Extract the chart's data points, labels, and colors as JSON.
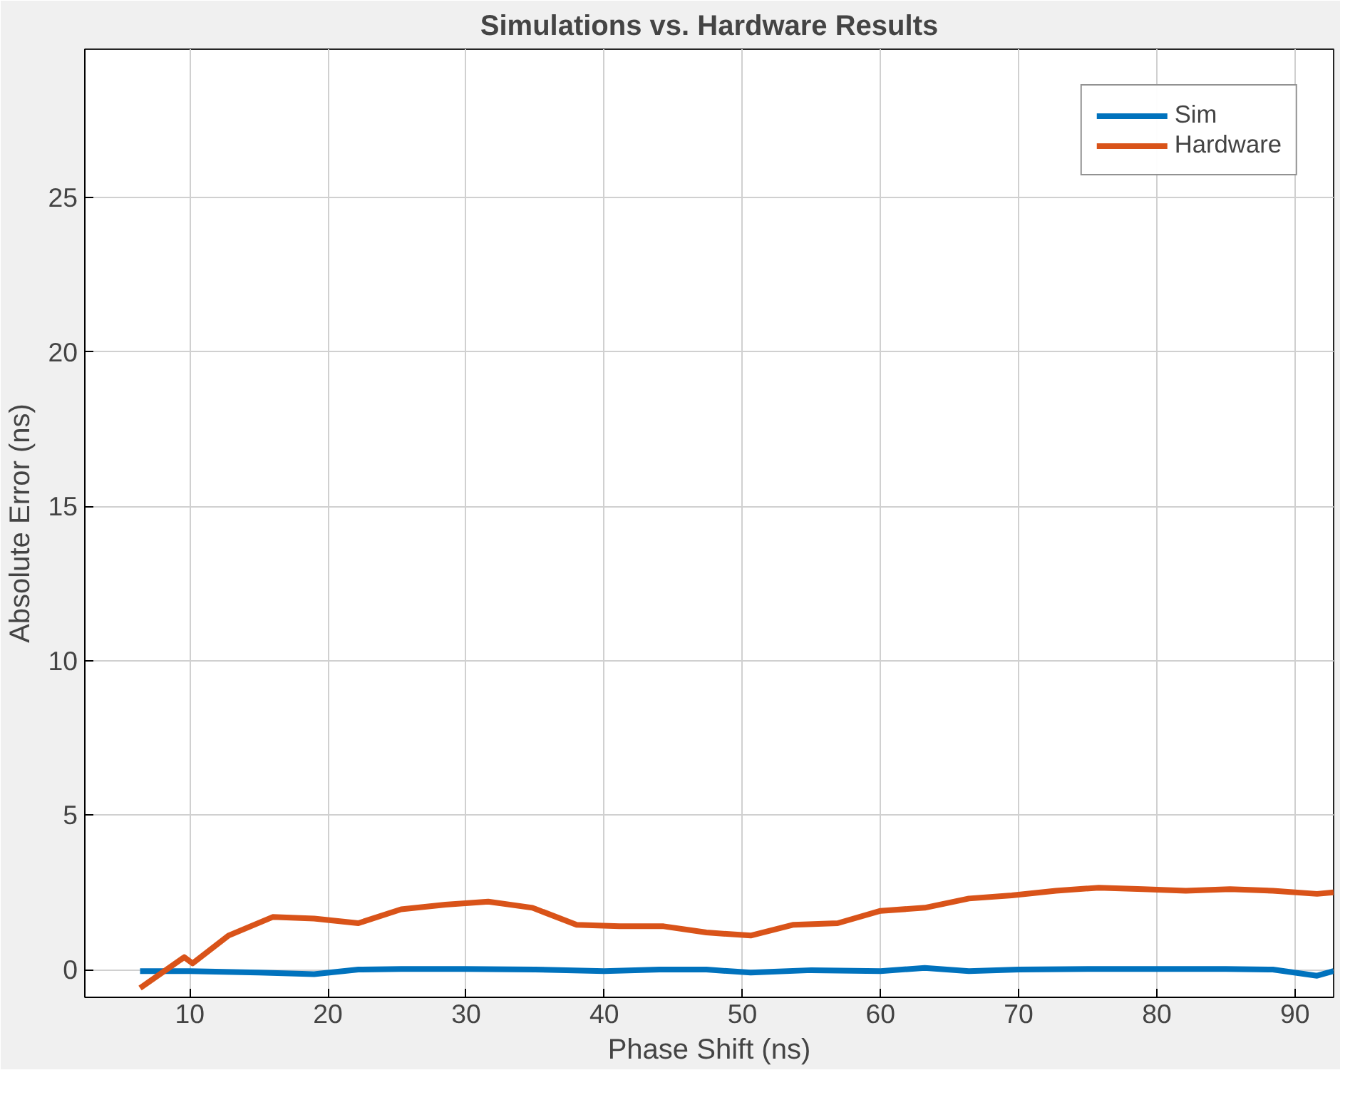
{
  "chart_data": {
    "type": "line",
    "title": "Simulations vs. Hardware Results",
    "xlabel": "Phase Shift (ns)",
    "ylabel": "Absolute Error (ns)",
    "xlim": [
      2.4,
      92.8
    ],
    "ylim": [
      -0.9,
      29.8
    ],
    "xticks": [
      10,
      20,
      30,
      40,
      50,
      60,
      70,
      80,
      90
    ],
    "yticks": [
      0,
      5,
      10,
      15,
      20,
      25
    ],
    "grid": true,
    "legend": "top right",
    "line_style": "solid",
    "series": [
      {
        "name": "Sim",
        "color": "#0072bd",
        "x": [
          6.4,
          10,
          15,
          19,
          22.2,
          25.3,
          30,
          35,
          40,
          44,
          47.4,
          50.6,
          55,
          60,
          63.2,
          66.4,
          70,
          75,
          80,
          85,
          88.4,
          91.6,
          92.8
        ],
        "values": [
          -0.05,
          -0.05,
          -0.1,
          -0.15,
          0,
          0.02,
          0.02,
          0,
          -0.05,
          0,
          0,
          -0.1,
          -0.02,
          -0.05,
          0.05,
          -0.05,
          0,
          0.02,
          0.02,
          0.02,
          0,
          -0.2,
          -0.05
        ]
      },
      {
        "name": "Hardware",
        "color": "#d95319",
        "x": [
          6.4,
          9.6,
          10.2,
          12.8,
          16,
          19,
          22.2,
          25.3,
          28.5,
          31.6,
          34.8,
          38,
          41.1,
          44.3,
          47.4,
          50.6,
          53.7,
          56.9,
          60,
          63.2,
          66.4,
          69.5,
          72.7,
          75.8,
          79,
          82.1,
          85.3,
          88.4,
          91.6,
          92.8
        ],
        "values": [
          -0.6,
          0.4,
          0.2,
          1.1,
          1.7,
          1.65,
          1.5,
          1.95,
          2.1,
          2.2,
          2.0,
          1.45,
          1.4,
          1.4,
          1.2,
          1.1,
          1.45,
          1.5,
          1.9,
          2.0,
          2.3,
          2.4,
          2.55,
          2.65,
          2.6,
          2.55,
          2.6,
          2.55,
          2.45,
          2.5
        ]
      }
    ]
  }
}
